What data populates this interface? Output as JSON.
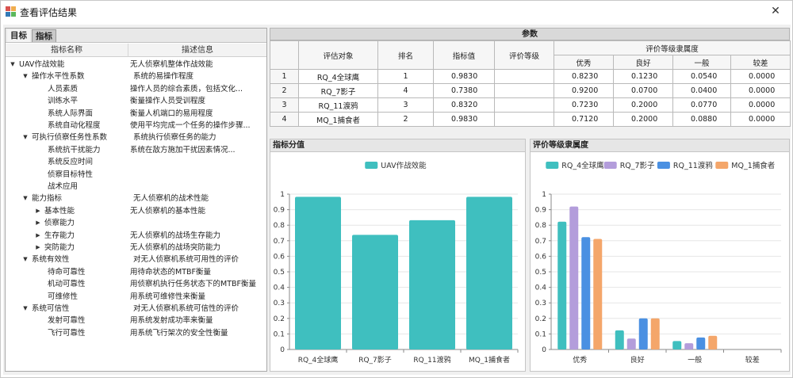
{
  "window": {
    "title": "查看评估结果",
    "close_label": "✕"
  },
  "left": {
    "tabs": [
      "目标",
      "指标"
    ],
    "columns": [
      "指标名称",
      "描述信息"
    ],
    "rows": [
      {
        "level": 0,
        "toggle": "expanded",
        "name": "UAV作战效能",
        "desc": "无人侦察机整体作战效能"
      },
      {
        "level": 1,
        "toggle": "expanded",
        "name": "操作水平性系数",
        "desc": "系统的易操作程度"
      },
      {
        "level": 2,
        "toggle": "none",
        "name": "人员素质",
        "desc": "操作人员的综合素质，包括文化..."
      },
      {
        "level": 2,
        "toggle": "none",
        "name": "训练水平",
        "desc": "衡量操作人员受训程度"
      },
      {
        "level": 2,
        "toggle": "none",
        "name": "系统人际界面",
        "desc": "衡量人机端口的易用程度"
      },
      {
        "level": 2,
        "toggle": "none",
        "name": "系统自动化程度",
        "desc": "使用平均完成一个任务的操作步骤..."
      },
      {
        "level": 1,
        "toggle": "expanded",
        "name": "可执行侦察任务性系数",
        "desc": "系统执行侦察任务的能力"
      },
      {
        "level": 2,
        "toggle": "none",
        "name": "系统抗干扰能力",
        "desc": "系统在敌方施加干扰因素情况..."
      },
      {
        "level": 2,
        "toggle": "none",
        "name": "系统反应时间",
        "desc": ""
      },
      {
        "level": 2,
        "toggle": "none",
        "name": "侦察目标特性",
        "desc": ""
      },
      {
        "level": 2,
        "toggle": "none",
        "name": "战术应用",
        "desc": ""
      },
      {
        "level": 1,
        "toggle": "expanded",
        "name": "能力指标",
        "desc": "无人侦察机的战术性能"
      },
      {
        "level": 2,
        "toggle": "collapsed",
        "name": "基本性能",
        "desc": "无人侦察机的基本性能"
      },
      {
        "level": 2,
        "toggle": "collapsed",
        "name": "侦察能力",
        "desc": ""
      },
      {
        "level": 2,
        "toggle": "collapsed",
        "name": "生存能力",
        "desc": "无人侦察机的战场生存能力"
      },
      {
        "level": 2,
        "toggle": "collapsed",
        "name": "突防能力",
        "desc": "无人侦察机的战场突防能力"
      },
      {
        "level": 1,
        "toggle": "expanded",
        "name": "系统有效性",
        "desc": "对无人侦察机系统可用性的评价"
      },
      {
        "level": 2,
        "toggle": "none",
        "name": "待命可靠性",
        "desc": "用待命状态的MTBF衡量"
      },
      {
        "level": 2,
        "toggle": "none",
        "name": "机动可靠性",
        "desc": "用侦察机执行任务状态下的MTBF衡量"
      },
      {
        "level": 2,
        "toggle": "none",
        "name": "可维修性",
        "desc": "用系统可维修性来衡量"
      },
      {
        "level": 1,
        "toggle": "expanded",
        "name": "系统可信性",
        "desc": "对无人侦察机系统可信性的评价"
      },
      {
        "level": 2,
        "toggle": "none",
        "name": "发射可靠性",
        "desc": "用系统发射成功率来衡量"
      },
      {
        "level": 2,
        "toggle": "none",
        "name": "飞行可靠性",
        "desc": "用系统飞行架次的安全性衡量"
      }
    ]
  },
  "params": {
    "title": "参数",
    "headers": {
      "target": "评估对象",
      "rank": "排名",
      "index_value": "指标值",
      "grade": "评价等级",
      "membership": "评价等级隶属度",
      "levels": [
        "优秀",
        "良好",
        "一般",
        "较差"
      ]
    },
    "rows": [
      {
        "idx": "1",
        "target": "RQ_4全球鹰",
        "rank": "1",
        "value": "0.9830",
        "grade": "",
        "m": [
          "0.8230",
          "0.1230",
          "0.0540",
          "0.0000"
        ]
      },
      {
        "idx": "2",
        "target": "RQ_7影子",
        "rank": "4",
        "value": "0.7380",
        "grade": "",
        "m": [
          "0.9200",
          "0.0700",
          "0.0400",
          "0.0000"
        ]
      },
      {
        "idx": "3",
        "target": "RQ_11渡鸦",
        "rank": "3",
        "value": "0.8320",
        "grade": "",
        "m": [
          "0.7230",
          "0.2000",
          "0.0770",
          "0.0000"
        ]
      },
      {
        "idx": "4",
        "target": "MQ_1捕食者",
        "rank": "2",
        "value": "0.9830",
        "grade": "",
        "m": [
          "0.7120",
          "0.2000",
          "0.0880",
          "0.0000"
        ]
      }
    ]
  },
  "score_panel_title": "指标分值",
  "grade_panel_title": "评价等级隶属度",
  "chart_data": [
    {
      "type": "bar",
      "title": "",
      "categories": [
        "RQ_4全球鹰",
        "RQ_7影子",
        "RQ_11渡鸦",
        "MQ_1捕食者"
      ],
      "series": [
        {
          "name": "UAV作战效能",
          "values": [
            0.983,
            0.738,
            0.832,
            0.983
          ],
          "color": "#3fbfbf"
        }
      ],
      "ylim": [
        0,
        1
      ],
      "yticks": [
        "0",
        "0.1",
        "0.2",
        "0.3",
        "0.4",
        "0.5",
        "0.6",
        "0.7",
        "0.8",
        "0.9",
        "1"
      ],
      "legend": "top-center",
      "grid": true
    },
    {
      "type": "bar",
      "title": "",
      "categories": [
        "优秀",
        "良好",
        "一般",
        "较差"
      ],
      "series": [
        {
          "name": "RQ_4全球鹰",
          "values": [
            0.823,
            0.123,
            0.054,
            0.0
          ],
          "color": "#3fbfbf"
        },
        {
          "name": "RQ_7影子",
          "values": [
            0.92,
            0.07,
            0.04,
            0.0
          ],
          "color": "#b39ddb"
        },
        {
          "name": "RQ_11渡鸦",
          "values": [
            0.723,
            0.2,
            0.077,
            0.0
          ],
          "color": "#4a90e2"
        },
        {
          "name": "MQ_1捕食者",
          "values": [
            0.712,
            0.2,
            0.088,
            0.0
          ],
          "color": "#f4a66a"
        }
      ],
      "ylim": [
        0,
        1
      ],
      "yticks": [
        "0",
        "0.1",
        "0.2",
        "0.3",
        "0.4",
        "0.5",
        "0.6",
        "0.7",
        "0.8",
        "0.9",
        "1"
      ],
      "legend": "top-center",
      "grid": true
    }
  ]
}
